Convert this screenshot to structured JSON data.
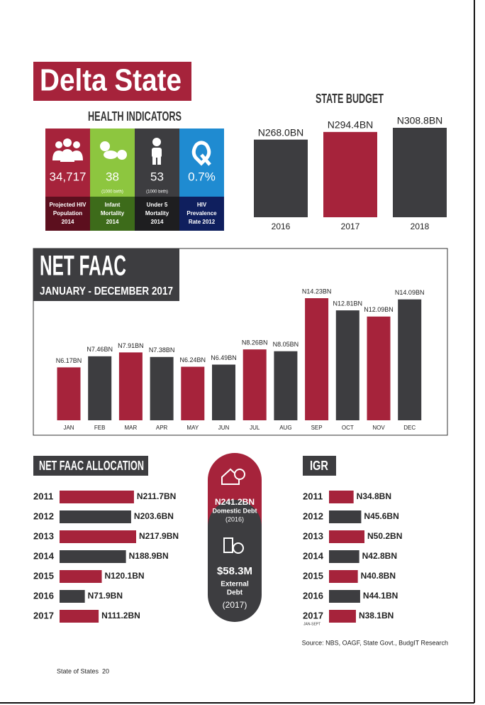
{
  "header": {
    "title": "Delta State",
    "subtitle": "HEALTH INDICATORS"
  },
  "indicators": [
    {
      "value": "34,717",
      "lines": [
        "Projected HIV",
        "Population",
        "2014"
      ]
    },
    {
      "value": "38",
      "unit": "(1000 birth)",
      "lines": [
        "Infant",
        "Mortality",
        "2014"
      ]
    },
    {
      "value": "53",
      "unit": "(1000 birth)",
      "lines": [
        "Under 5",
        "Mortality",
        "2014"
      ]
    },
    {
      "value": "0.7%",
      "lines": [
        "HIV",
        "Prevalence",
        "Rate 2012"
      ]
    }
  ],
  "chart_data": [
    {
      "type": "bar",
      "title": "STATE BUDGET",
      "categories": [
        "2016",
        "2017",
        "2018"
      ],
      "values": [
        268.0,
        294.4,
        308.8
      ],
      "value_labels": [
        "N268.0BN",
        "N294.4BN",
        "N308.8BN"
      ],
      "colors": [
        "#3d3d40",
        "#a6233b",
        "#3d3d40"
      ]
    },
    {
      "type": "bar",
      "title": "NET FAAC",
      "subtitle": "JANUARY - DECEMBER 2017",
      "categories": [
        "JAN",
        "FEB",
        "MAR",
        "APR",
        "MAY",
        "JUN",
        "JUL",
        "AUG",
        "SEP",
        "OCT",
        "NOV",
        "DEC"
      ],
      "values": [
        6.17,
        7.46,
        7.91,
        7.38,
        6.24,
        6.49,
        8.26,
        8.05,
        14.23,
        12.81,
        12.09,
        14.09
      ],
      "value_labels": [
        "N6.17BN",
        "N7.46BN",
        "N7.91BN",
        "N7.38BN",
        "N6.24BN",
        "N6.49BN",
        "N8.26BN",
        "N8.05BN",
        "N14.23BN",
        "N12.81BN",
        "N12.09BN",
        "N14.09BN"
      ],
      "colors": [
        "#a6233b",
        "#3d3d40",
        "#a6233b",
        "#3d3d40",
        "#a6233b",
        "#3d3d40",
        "#a6233b",
        "#3d3d40",
        "#a6233b",
        "#3d3d40",
        "#a6233b",
        "#3d3d40"
      ]
    },
    {
      "type": "bar",
      "orientation": "horizontal",
      "title": "NET FAAC ALLOCATION",
      "categories": [
        "2011",
        "2012",
        "2013",
        "2014",
        "2015",
        "2016",
        "2017"
      ],
      "values": [
        211.7,
        203.6,
        217.9,
        188.9,
        120.1,
        71.9,
        111.2
      ],
      "value_labels": [
        "N211.7BN",
        "N203.6BN",
        "N217.9BN",
        "N188.9BN",
        "N120.1BN",
        "N71.9BN",
        "N111.2BN"
      ],
      "colors": [
        "#a6233b",
        "#3d3d40",
        "#a6233b",
        "#3d3d40",
        "#a6233b",
        "#3d3d40",
        "#a6233b"
      ]
    },
    {
      "type": "bar",
      "orientation": "horizontal",
      "title": "IGR",
      "note": "JAN-SEPT",
      "categories": [
        "2011",
        "2012",
        "2013",
        "2014",
        "2015",
        "2016",
        "2017"
      ],
      "values": [
        34.8,
        45.6,
        50.2,
        42.8,
        40.8,
        44.1,
        38.1
      ],
      "value_labels": [
        "N34.8BN",
        "N45.6BN",
        "N50.2BN",
        "N42.8BN",
        "N40.8BN",
        "N44.1BN",
        "N38.1BN"
      ],
      "colors": [
        "#a6233b",
        "#3d3d40",
        "#a6233b",
        "#3d3d40",
        "#a6233b",
        "#3d3d40",
        "#a6233b"
      ]
    }
  ],
  "debt": {
    "domestic": {
      "amount": "N241.2BN",
      "label": "Domestic Debt",
      "year": "(2016)"
    },
    "external": {
      "amount": "$58.3M",
      "lines": [
        "External",
        "Debt"
      ],
      "year": "(2017)"
    }
  },
  "source": "Source: NBS, OAGF, State Govt., BudgIT Research",
  "footer": {
    "text": "State of States",
    "page": "20"
  }
}
